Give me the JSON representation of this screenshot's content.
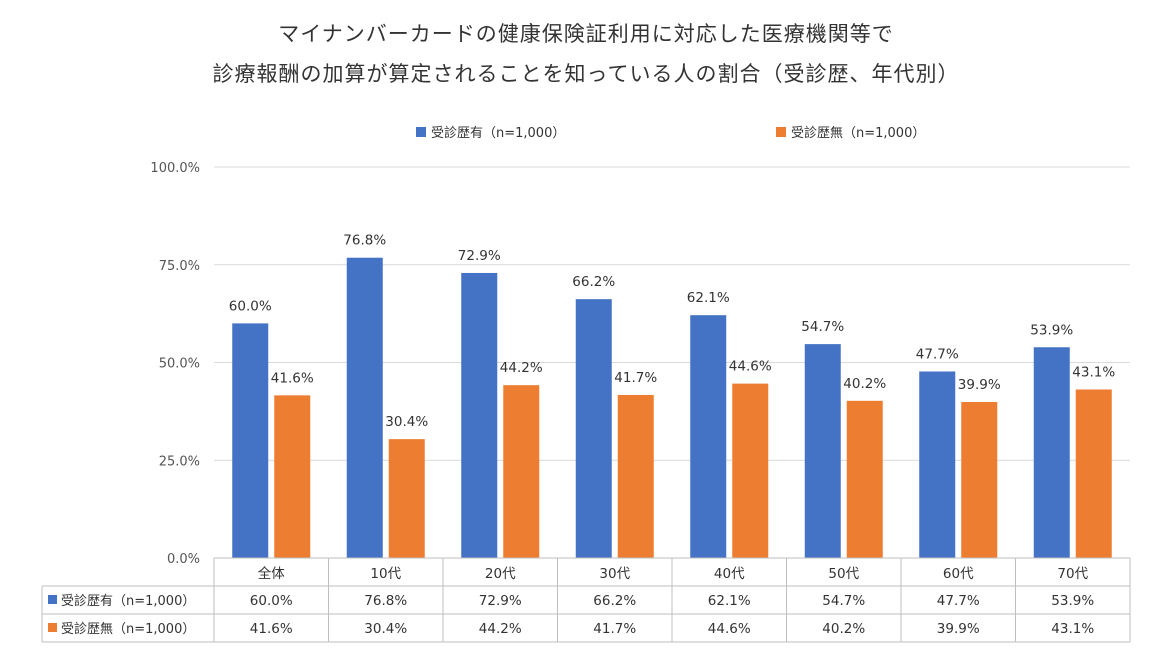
{
  "chart_data": {
    "type": "bar",
    "title_lines": [
      "マイナンバーカードの健康保険証利用に対応した医療機関等で",
      "診療報酬の加算が算定されることを知っている人の割合（受診歴、年代別）"
    ],
    "categories": [
      "全体",
      "10代",
      "20代",
      "30代",
      "40代",
      "50代",
      "60代",
      "70代"
    ],
    "series": [
      {
        "name": "受診歴有（n=1,000）",
        "color": "#4472C4",
        "values": [
          60.0,
          76.8,
          72.9,
          66.2,
          62.1,
          54.7,
          47.7,
          53.9
        ]
      },
      {
        "name": "受診歴無（n=1,000）",
        "color": "#ED7D31",
        "values": [
          41.6,
          30.4,
          44.2,
          41.7,
          44.6,
          40.2,
          39.9,
          43.1
        ]
      }
    ],
    "ylim": [
      0,
      100
    ],
    "yticks": [
      "0.0%",
      "25.0%",
      "50.0%",
      "75.0%",
      "100.0%"
    ],
    "value_labels": [
      [
        "60.0%",
        "76.8%",
        "72.9%",
        "66.2%",
        "62.1%",
        "54.7%",
        "47.7%",
        "53.9%"
      ],
      [
        "41.6%",
        "30.4%",
        "44.2%",
        "41.7%",
        "44.6%",
        "40.2%",
        "39.9%",
        "43.1%"
      ]
    ],
    "grid": true,
    "legend_position": "top",
    "data_table": true
  }
}
